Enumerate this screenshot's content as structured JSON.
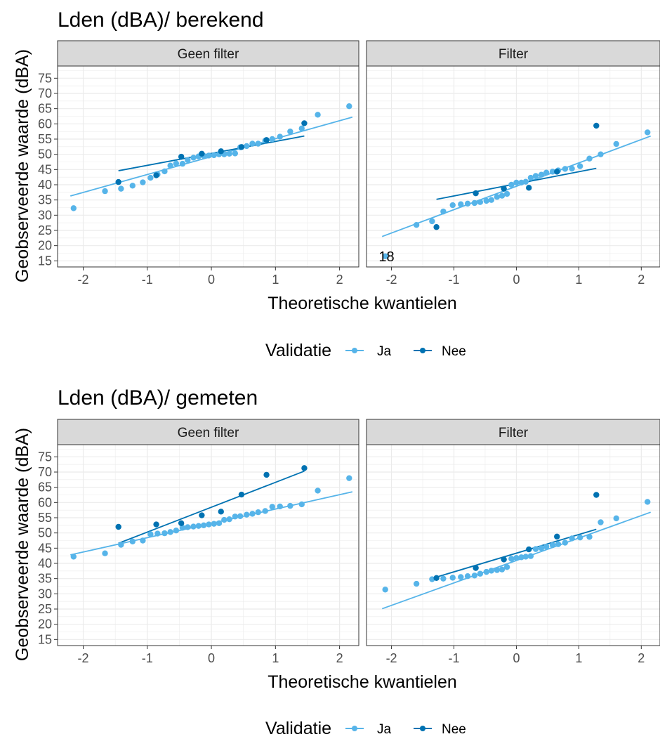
{
  "colors": {
    "Ja": "#56B4E9",
    "Nee": "#0072B2",
    "strip_bg": "#d9d9d9",
    "grid": "#ebebeb"
  },
  "chart_data": [
    {
      "type": "scatter",
      "title": "Lden (dBA)/ berekend",
      "xlabel": "Theoretische kwantielen",
      "ylabel": "Geobserveerde waarde (dBA)",
      "xlim": [
        -2.4,
        2.3
      ],
      "ylim": [
        13,
        79
      ],
      "xticks": [
        "-2",
        "-1",
        "0",
        "1",
        "2"
      ],
      "yticks": [
        "15",
        "20",
        "25",
        "30",
        "35",
        "40",
        "45",
        "50",
        "55",
        "60",
        "65",
        "70",
        "75"
      ],
      "legend": {
        "title": "Validatie",
        "entries": [
          "Ja",
          "Nee"
        ],
        "position": "bottom"
      },
      "facets": [
        {
          "label": "Geen filter",
          "series": [
            {
              "name": "Ja",
              "points": [
                [
                  -2.15,
                  32.3
                ],
                [
                  -1.66,
                  37.9
                ],
                [
                  -1.41,
                  38.7
                ],
                [
                  -1.23,
                  39.7
                ],
                [
                  -1.07,
                  40.8
                ],
                [
                  -0.95,
                  42.3
                ],
                [
                  -0.84,
                  43.4
                ],
                [
                  -0.73,
                  44.4
                ],
                [
                  -0.64,
                  46.3
                ],
                [
                  -0.55,
                  47.0
                ],
                [
                  -0.45,
                  46.9
                ],
                [
                  -0.37,
                  48.1
                ],
                [
                  -0.28,
                  48.9
                ],
                [
                  -0.2,
                  49.3
                ],
                [
                  -0.12,
                  49.5
                ],
                [
                  -0.04,
                  49.6
                ],
                [
                  0.04,
                  49.7
                ],
                [
                  0.12,
                  50.0
                ],
                [
                  0.2,
                  50.0
                ],
                [
                  0.28,
                  50.2
                ],
                [
                  0.37,
                  50.3
                ],
                [
                  0.45,
                  52.3
                ],
                [
                  0.55,
                  52.7
                ],
                [
                  0.64,
                  53.5
                ],
                [
                  0.73,
                  53.5
                ],
                [
                  0.84,
                  54.5
                ],
                [
                  0.95,
                  55.0
                ],
                [
                  1.07,
                  55.8
                ],
                [
                  1.23,
                  57.5
                ],
                [
                  1.41,
                  58.5
                ],
                [
                  1.66,
                  63.0
                ],
                [
                  2.15,
                  65.8
                ]
              ],
              "fit": [
                [
                  -2.2,
                  36.3
                ],
                [
                  2.2,
                  62.2
                ]
              ]
            },
            {
              "name": "Nee",
              "points": [
                [
                  -1.45,
                  40.9
                ],
                [
                  -0.86,
                  43.1
                ],
                [
                  -0.47,
                  49.2
                ],
                [
                  -0.15,
                  50.2
                ],
                [
                  0.15,
                  51.0
                ],
                [
                  0.47,
                  52.4
                ],
                [
                  0.86,
                  54.7
                ],
                [
                  1.45,
                  60.2
                ]
              ],
              "fit": [
                [
                  -1.45,
                  44.6
                ],
                [
                  1.45,
                  56.0
                ]
              ]
            }
          ]
        },
        {
          "label": "Filter",
          "annotation": {
            "text": "18",
            "x": -2.08,
            "y": 16.5
          },
          "series": [
            {
              "name": "Ja",
              "points": [
                [
                  -2.1,
                  16.5
                ],
                [
                  -1.6,
                  26.8
                ],
                [
                  -1.35,
                  28.0
                ],
                [
                  -1.17,
                  31.2
                ],
                [
                  -1.02,
                  33.3
                ],
                [
                  -0.89,
                  33.6
                ],
                [
                  -0.78,
                  33.8
                ],
                [
                  -0.67,
                  34.0
                ],
                [
                  -0.58,
                  34.3
                ],
                [
                  -0.48,
                  34.7
                ],
                [
                  -0.4,
                  35.0
                ],
                [
                  -0.31,
                  36.0
                ],
                [
                  -0.23,
                  36.4
                ],
                [
                  -0.15,
                  37.0
                ],
                [
                  -0.08,
                  40.0
                ],
                [
                  0.0,
                  40.7
                ],
                [
                  0.08,
                  40.7
                ],
                [
                  0.15,
                  41.0
                ],
                [
                  0.23,
                  42.3
                ],
                [
                  0.31,
                  42.9
                ],
                [
                  0.4,
                  43.3
                ],
                [
                  0.48,
                  44.0
                ],
                [
                  0.58,
                  44.3
                ],
                [
                  0.67,
                  44.7
                ],
                [
                  0.78,
                  45.2
                ],
                [
                  0.89,
                  45.3
                ],
                [
                  1.02,
                  46.1
                ],
                [
                  1.17,
                  48.6
                ],
                [
                  1.35,
                  50.0
                ],
                [
                  1.6,
                  53.4
                ],
                [
                  2.1,
                  57.2
                ]
              ],
              "fit": [
                [
                  -2.15,
                  23.0
                ],
                [
                  2.15,
                  56.0
                ]
              ]
            },
            {
              "name": "Nee",
              "points": [
                [
                  -1.28,
                  26.1
                ],
                [
                  -0.65,
                  37.2
                ],
                [
                  -0.2,
                  38.7
                ],
                [
                  0.2,
                  39.0
                ],
                [
                  0.65,
                  44.3
                ],
                [
                  1.28,
                  59.4
                ]
              ],
              "fit": [
                [
                  -1.28,
                  35.2
                ],
                [
                  1.28,
                  45.4
                ]
              ]
            }
          ]
        }
      ]
    },
    {
      "type": "scatter",
      "title": "Lden (dBA)/ gemeten",
      "xlabel": "Theoretische kwantielen",
      "ylabel": "Geobserveerde waarde (dBA)",
      "xlim": [
        -2.4,
        2.3
      ],
      "ylim": [
        13,
        79
      ],
      "xticks": [
        "-2",
        "-1",
        "0",
        "1",
        "2"
      ],
      "yticks": [
        "15",
        "20",
        "25",
        "30",
        "35",
        "40",
        "45",
        "50",
        "55",
        "60",
        "65",
        "70",
        "75"
      ],
      "legend": {
        "title": "Validatie",
        "entries": [
          "Ja",
          "Nee"
        ],
        "position": "bottom"
      },
      "facets": [
        {
          "label": "Geen filter",
          "series": [
            {
              "name": "Ja",
              "points": [
                [
                  -2.15,
                  42.2
                ],
                [
                  -1.66,
                  43.3
                ],
                [
                  -1.41,
                  46.1
                ],
                [
                  -1.23,
                  47.2
                ],
                [
                  -1.07,
                  47.5
                ],
                [
                  -0.95,
                  49.6
                ],
                [
                  -0.84,
                  49.8
                ],
                [
                  -0.73,
                  49.9
                ],
                [
                  -0.64,
                  50.3
                ],
                [
                  -0.55,
                  50.8
                ],
                [
                  -0.45,
                  51.7
                ],
                [
                  -0.37,
                  51.9
                ],
                [
                  -0.28,
                  52.1
                ],
                [
                  -0.2,
                  52.3
                ],
                [
                  -0.12,
                  52.5
                ],
                [
                  -0.04,
                  52.8
                ],
                [
                  0.04,
                  53.0
                ],
                [
                  0.12,
                  53.2
                ],
                [
                  0.2,
                  54.3
                ],
                [
                  0.28,
                  54.5
                ],
                [
                  0.37,
                  55.4
                ],
                [
                  0.45,
                  55.5
                ],
                [
                  0.55,
                  56.0
                ],
                [
                  0.64,
                  56.3
                ],
                [
                  0.73,
                  56.8
                ],
                [
                  0.84,
                  57.2
                ],
                [
                  0.95,
                  58.6
                ],
                [
                  1.07,
                  58.7
                ],
                [
                  1.23,
                  58.9
                ],
                [
                  1.41,
                  59.4
                ],
                [
                  1.66,
                  63.9
                ],
                [
                  2.15,
                  68.0
                ]
              ],
              "fit": [
                [
                  -2.2,
                  42.8
                ],
                [
                  2.2,
                  63.5
                ]
              ]
            },
            {
              "name": "Nee",
              "points": [
                [
                  -1.45,
                  52.0
                ],
                [
                  -0.86,
                  52.8
                ],
                [
                  -0.47,
                  53.2
                ],
                [
                  -0.15,
                  55.8
                ],
                [
                  0.15,
                  57.0
                ],
                [
                  0.47,
                  62.6
                ],
                [
                  0.86,
                  69.1
                ],
                [
                  1.45,
                  71.3
                ]
              ],
              "fit": [
                [
                  -1.45,
                  46.6
                ],
                [
                  1.45,
                  70.3
                ]
              ]
            }
          ]
        },
        {
          "label": "Filter",
          "series": [
            {
              "name": "Ja",
              "points": [
                [
                  -2.1,
                  31.4
                ],
                [
                  -1.6,
                  33.3
                ],
                [
                  -1.35,
                  34.8
                ],
                [
                  -1.17,
                  35.0
                ],
                [
                  -1.02,
                  35.3
                ],
                [
                  -0.89,
                  35.5
                ],
                [
                  -0.78,
                  35.8
                ],
                [
                  -0.67,
                  36.0
                ],
                [
                  -0.58,
                  36.6
                ],
                [
                  -0.48,
                  37.2
                ],
                [
                  -0.4,
                  37.6
                ],
                [
                  -0.31,
                  37.8
                ],
                [
                  -0.23,
                  38.0
                ],
                [
                  -0.15,
                  38.8
                ],
                [
                  -0.08,
                  41.5
                ],
                [
                  0.0,
                  41.8
                ],
                [
                  0.08,
                  42.0
                ],
                [
                  0.15,
                  42.2
                ],
                [
                  0.23,
                  42.4
                ],
                [
                  0.31,
                  44.7
                ],
                [
                  0.4,
                  45.0
                ],
                [
                  0.48,
                  45.5
                ],
                [
                  0.58,
                  46.0
                ],
                [
                  0.67,
                  46.3
                ],
                [
                  0.78,
                  46.8
                ],
                [
                  0.89,
                  48.2
                ],
                [
                  1.02,
                  48.5
                ],
                [
                  1.17,
                  48.7
                ],
                [
                  1.35,
                  53.5
                ],
                [
                  1.6,
                  54.8
                ],
                [
                  2.1,
                  60.2
                ]
              ],
              "fit": [
                [
                  -2.15,
                  25.1
                ],
                [
                  2.15,
                  56.8
                ]
              ]
            },
            {
              "name": "Nee",
              "points": [
                [
                  -1.28,
                  35.2
                ],
                [
                  -0.65,
                  38.5
                ],
                [
                  -0.2,
                  41.3
                ],
                [
                  0.2,
                  44.6
                ],
                [
                  0.65,
                  48.8
                ],
                [
                  1.28,
                  62.5
                ]
              ],
              "fit": [
                [
                  -1.28,
                  35.5
                ],
                [
                  1.28,
                  51.2
                ]
              ]
            }
          ]
        }
      ]
    }
  ]
}
